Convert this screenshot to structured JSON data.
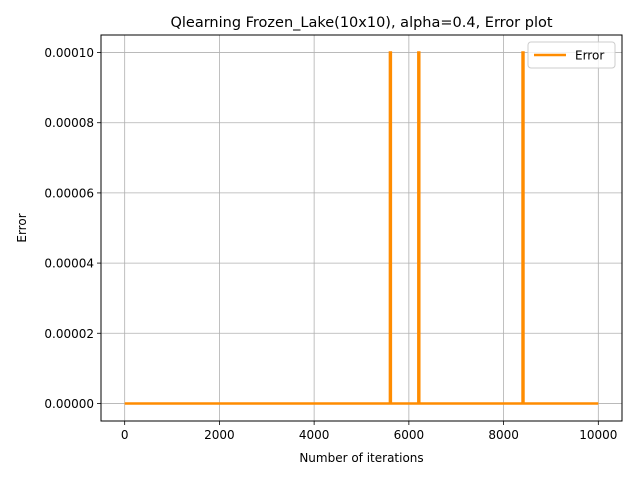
{
  "chart_data": {
    "type": "line",
    "title": "Qlearning Frozen_Lake(10x10),  alpha=0.4, Error plot",
    "xlabel": "Number of iterations",
    "ylabel": "Error",
    "xlim": [
      -500,
      10500
    ],
    "ylim": [
      -5e-06,
      0.000105
    ],
    "xticks": [
      0,
      2000,
      4000,
      6000,
      8000,
      10000
    ],
    "xtick_labels": [
      "0",
      "2000",
      "4000",
      "6000",
      "8000",
      "10000"
    ],
    "yticks": [
      0,
      2e-05,
      4e-05,
      6e-05,
      8e-05,
      0.0001
    ],
    "ytick_labels": [
      "0.00000",
      "0.00002",
      "0.00004",
      "0.00006",
      "0.00008",
      "0.00010"
    ],
    "grid": true,
    "legend_position": "top-right",
    "series": [
      {
        "name": "Error",
        "color": "#ff8c00",
        "x": [
          0,
          5600,
          5600,
          5620,
          5620,
          6200,
          6200,
          6220,
          6220,
          8400,
          8400,
          8420,
          8420,
          10000
        ],
        "y": [
          0,
          0,
          0.0001,
          0.0001,
          0,
          0,
          0.0001,
          0.0001,
          0,
          0,
          0.0001,
          0.0001,
          0,
          0
        ]
      }
    ]
  }
}
